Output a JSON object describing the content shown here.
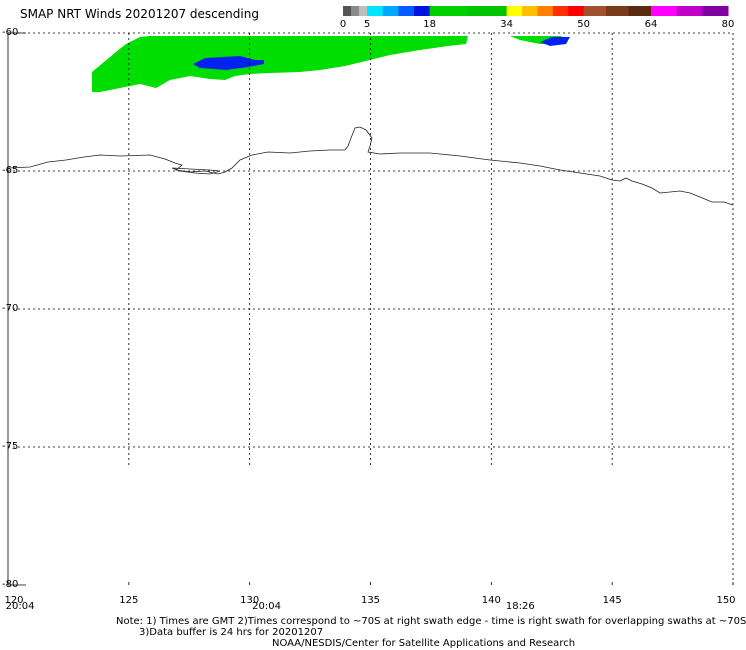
{
  "title": "SMAP NRT Winds  20201207 descending",
  "colorbar": {
    "segments": [
      {
        "from": 0,
        "to": 5,
        "colors": [
          "#555555",
          "#8a8a8a",
          "#bdbdbd"
        ]
      },
      {
        "from": 5,
        "to": 18,
        "colors": [
          "#00e5ff",
          "#00a8ff",
          "#005cff",
          "#0012e0"
        ]
      },
      {
        "from": 18,
        "to": 34,
        "colors": [
          "#00d000",
          "#00c400"
        ]
      },
      {
        "from": 34,
        "to": 50,
        "colors": [
          "#ffff00",
          "#ffc000",
          "#ff8000",
          "#ff3000",
          "#ff0000"
        ]
      },
      {
        "from": 50,
        "to": 64,
        "colors": [
          "#a0522d",
          "#7a3b1b",
          "#5a2a10"
        ]
      },
      {
        "from": 64,
        "to": 80,
        "colors": [
          "#ff00ff",
          "#c000c8",
          "#8000a0"
        ]
      }
    ],
    "labels": [
      "0",
      "5",
      "18",
      "34",
      "50",
      "64",
      "80"
    ]
  },
  "map": {
    "lat_range": [
      -60,
      -80
    ],
    "lon_range": [
      120,
      150
    ],
    "lat_labels": [
      "-60",
      "-65",
      "-70",
      "-75",
      "-80"
    ],
    "lon_labels": [
      "120",
      "125",
      "130",
      "135",
      "140",
      "145",
      "150"
    ]
  },
  "swath": {
    "green_color": "#00dd00",
    "blue_color": "#0022ee"
  },
  "times": [
    {
      "lon": 120.5,
      "label": "20:04"
    },
    {
      "lon": 130.7,
      "label": "20:04"
    },
    {
      "lon": 141.2,
      "label": "18:26"
    }
  ],
  "notes": {
    "line1": "Note: 1) Times are GMT 2)Times correspond to ~70S at right swath edge - time is right swath for overlapping swaths at ~70S",
    "line2": "3)Data buffer is 24 hrs for 20201207",
    "line3": "NOAA/NESDIS/Center for Satellite Applications and Research"
  }
}
